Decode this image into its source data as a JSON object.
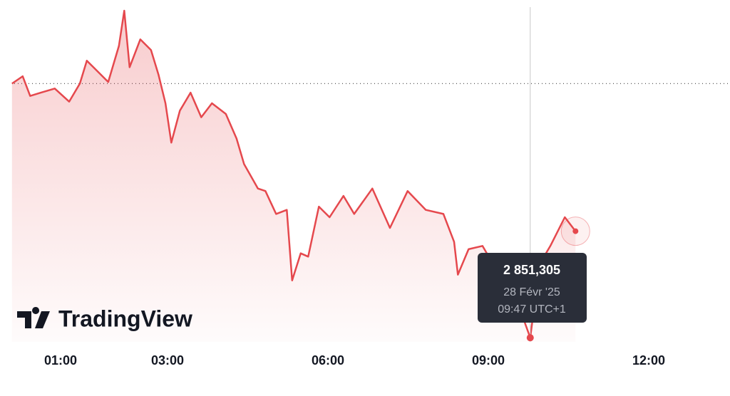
{
  "chart_data": {
    "type": "line",
    "watermark": "TradingView",
    "x": [
      0.09,
      0.29,
      0.43,
      0.63,
      0.89,
      1.16,
      1.36,
      1.49,
      1.69,
      1.89,
      2.09,
      2.19,
      2.29,
      2.49,
      2.69,
      2.83,
      2.96,
      3.07,
      3.23,
      3.43,
      3.63,
      3.83,
      4.09,
      4.29,
      4.43,
      4.69,
      4.83,
      5.03,
      5.23,
      5.33,
      5.49,
      5.63,
      5.83,
      6.03,
      6.29,
      6.49,
      6.83,
      7.16,
      7.49,
      7.83,
      8.16,
      8.36,
      8.43,
      8.63,
      8.89,
      9.16,
      9.43,
      9.783,
      9.96,
      10.16,
      10.43,
      10.63
    ],
    "series": [
      {
        "color": "#e5484d",
        "values": [
          2882.3,
          2883.2,
          2880.8,
          2881.2,
          2881.7,
          2880.1,
          2882.3,
          2885.1,
          2883.8,
          2882.5,
          2886.9,
          2891.2,
          2884.3,
          2887.7,
          2886.4,
          2883.4,
          2879.9,
          2875.1,
          2879.0,
          2881.2,
          2878.2,
          2879.9,
          2878.6,
          2875.6,
          2872.5,
          2869.5,
          2869.2,
          2866.4,
          2866.9,
          2858.3,
          2861.6,
          2861.2,
          2867.3,
          2866.0,
          2868.6,
          2866.4,
          2869.5,
          2864.7,
          2869.2,
          2866.9,
          2866.4,
          2863.0,
          2859.0,
          2862.1,
          2862.5,
          2859.5,
          2857.7,
          2851.305,
          2860.3,
          2862.5,
          2866.0,
          2864.3
        ]
      }
    ],
    "reference_line": 2882.3,
    "xlim": [
      0.07,
      13.49
    ],
    "xticks": [
      {
        "value": 1,
        "label": "01:00"
      },
      {
        "value": 3,
        "label": "03:00"
      },
      {
        "value": 6,
        "label": "06:00"
      },
      {
        "value": 9,
        "label": "09:00"
      },
      {
        "value": 12,
        "label": "12:00"
      }
    ],
    "ylim": [
      2850.8,
      2892.5
    ],
    "tooltip": {
      "x": 9.783,
      "value": 2851.305,
      "label": "2 851,305",
      "date": "28 Févr '25",
      "time": "09:47 UTC+1"
    }
  }
}
